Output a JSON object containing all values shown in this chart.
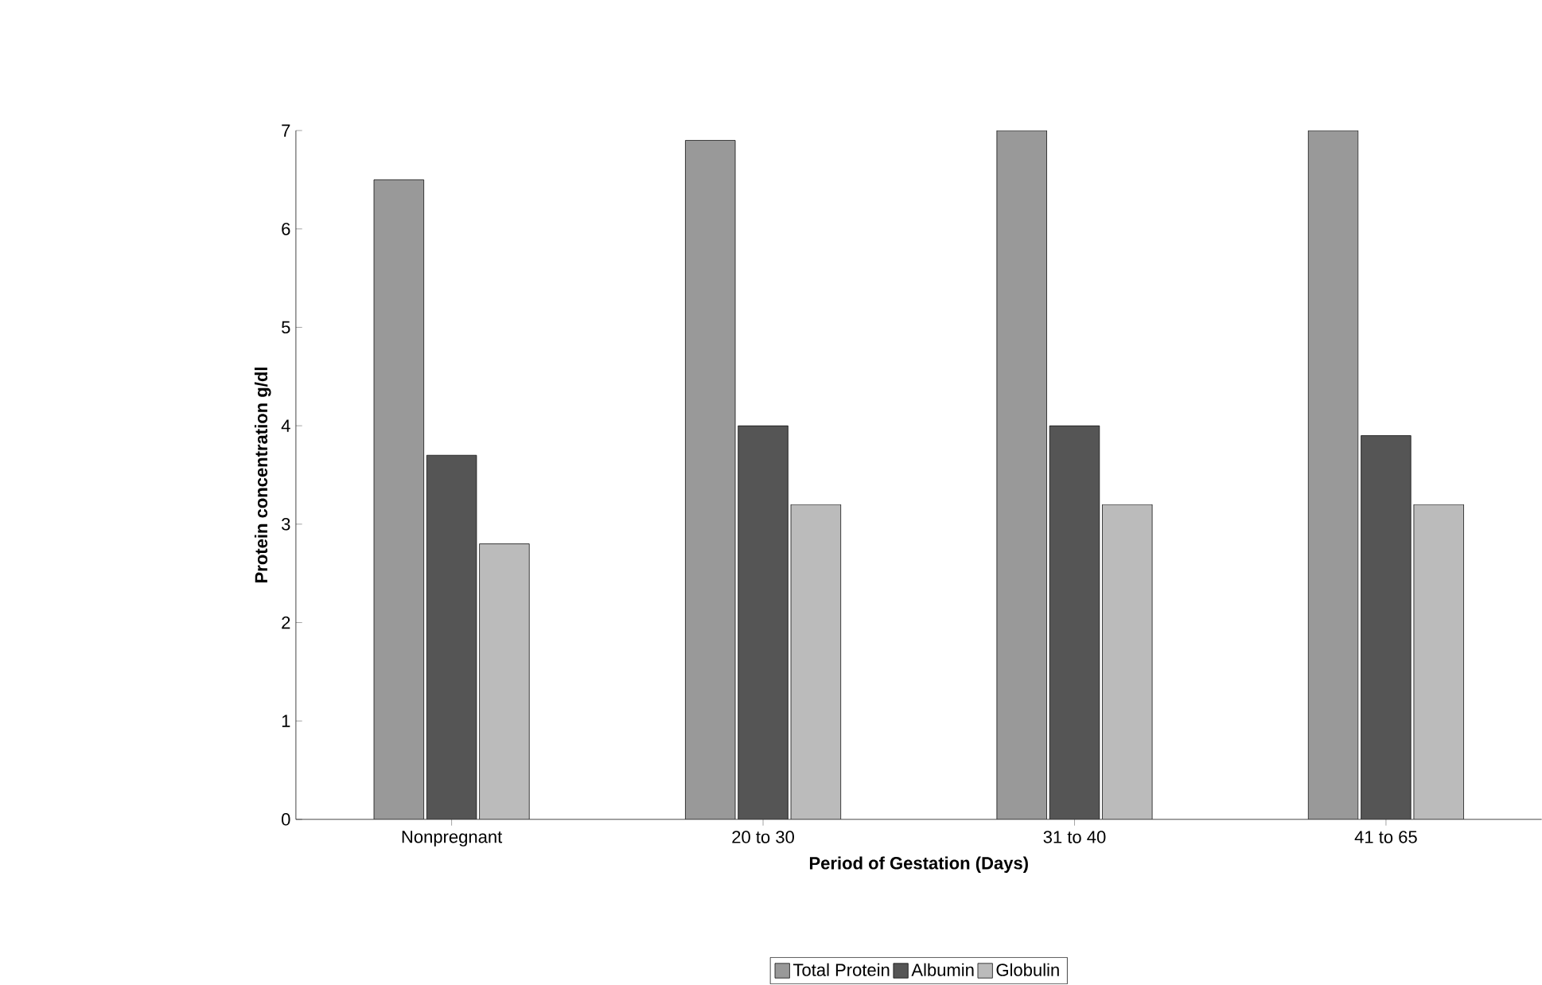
{
  "chart_data": {
    "type": "bar",
    "xlabel": "Period of Gestation (Days)",
    "ylabel": "Protein concentration g/dl",
    "categories": [
      "Nonpregnant",
      "20 to 30",
      "31 to 40",
      "41 to 65"
    ],
    "series": [
      {
        "name": "Total Protein",
        "color": "#999999",
        "values": [
          6.5,
          6.9,
          7.0,
          7.0
        ]
      },
      {
        "name": "Albumin",
        "color": "#555555",
        "values": [
          3.7,
          4.0,
          4.0,
          3.9
        ]
      },
      {
        "name": "Globulin",
        "color": "#bbbbbb",
        "values": [
          2.8,
          3.2,
          3.2,
          3.2
        ]
      }
    ],
    "ylim": [
      0,
      7
    ],
    "yticks": [
      0,
      1,
      2,
      3,
      4,
      5,
      6,
      7
    ],
    "legend": "bottom"
  }
}
